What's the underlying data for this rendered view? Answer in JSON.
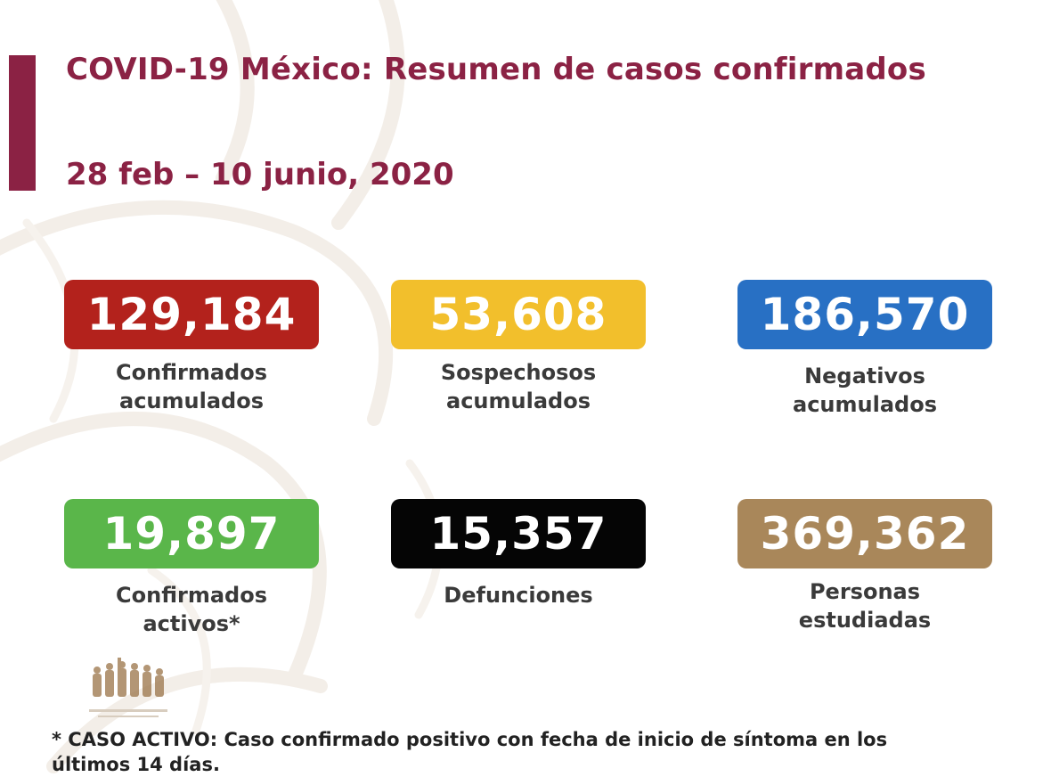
{
  "header": {
    "title": "COVID-19 México: Resumen de casos confirmados",
    "date_range": "28 feb – 10 junio, 2020"
  },
  "stats": [
    {
      "value": "129,184",
      "label_line1": "Confirmados",
      "label_line2": "acumulados",
      "color": "#b3221c"
    },
    {
      "value": "53,608",
      "label_line1": "Sospechosos",
      "label_line2": "acumulados",
      "color": "#f2bf2c"
    },
    {
      "value": "186,570",
      "label_line1": "Negativos",
      "label_line2": "acumulados",
      "color": "#2870c4"
    },
    {
      "value": "19,897",
      "label_line1": "Confirmados",
      "label_line2": "activos*",
      "color": "#5ab64a"
    },
    {
      "value": "15,357",
      "label_line1": "Defunciones",
      "label_line2": "",
      "color": "#050505"
    },
    {
      "value": "369,362",
      "label_line1": "Personas",
      "label_line2": "estudiadas",
      "color": "#a9875a"
    }
  ],
  "footnote": {
    "line1": "* CASO ACTIVO: Caso confirmado positivo con fecha de inicio de síntoma en los",
    "line2": "últimos 14 días."
  },
  "colors": {
    "brand": "#8b2244",
    "text": "#3a3a3a"
  },
  "icons": {
    "logo": "government-emblem-icon"
  }
}
